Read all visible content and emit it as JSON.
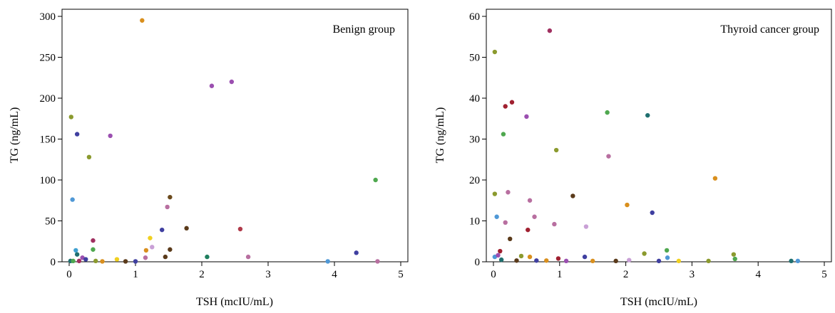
{
  "chart_data": [
    {
      "type": "scatter",
      "title": "Benign group",
      "xlabel": "TSH (mcIU/mL)",
      "ylabel": "TG (ng/mL)",
      "xlim": [
        0,
        5
      ],
      "ylim": [
        0,
        300
      ],
      "xticks": [
        0,
        1,
        2,
        3,
        4,
        5
      ],
      "yticks": [
        0,
        50,
        100,
        150,
        200,
        250,
        300
      ],
      "grid": false,
      "points": [
        {
          "x": 1.1,
          "y": 295,
          "color": "#d98f1d"
        },
        {
          "x": 2.15,
          "y": 215,
          "color": "#9b4fb0"
        },
        {
          "x": 2.45,
          "y": 220,
          "color": "#9b4fb0"
        },
        {
          "x": 0.03,
          "y": 177,
          "color": "#8b9a2e"
        },
        {
          "x": 0.12,
          "y": 156,
          "color": "#3f3fa0"
        },
        {
          "x": 0.62,
          "y": 154,
          "color": "#9b4fb0"
        },
        {
          "x": 0.3,
          "y": 128,
          "color": "#8b9a2e"
        },
        {
          "x": 4.62,
          "y": 100,
          "color": "#4fa84f"
        },
        {
          "x": 1.52,
          "y": 79,
          "color": "#6b4a1c"
        },
        {
          "x": 0.05,
          "y": 76,
          "color": "#4f98d6"
        },
        {
          "x": 1.48,
          "y": 67,
          "color": "#b86fa0"
        },
        {
          "x": 1.77,
          "y": 41,
          "color": "#5a3a1a"
        },
        {
          "x": 1.4,
          "y": 39,
          "color": "#3f3fa0"
        },
        {
          "x": 2.58,
          "y": 40,
          "color": "#b03a4a"
        },
        {
          "x": 1.22,
          "y": 29,
          "color": "#f0d020"
        },
        {
          "x": 0.36,
          "y": 26,
          "color": "#a03060"
        },
        {
          "x": 1.25,
          "y": 18,
          "color": "#c9a0d6"
        },
        {
          "x": 0.36,
          "y": 15,
          "color": "#4fa84f"
        },
        {
          "x": 0.1,
          "y": 14,
          "color": "#3fa0d0"
        },
        {
          "x": 1.16,
          "y": 14,
          "color": "#d98f1d"
        },
        {
          "x": 1.52,
          "y": 15,
          "color": "#5a3a1a"
        },
        {
          "x": 4.33,
          "y": 11,
          "color": "#3f3fa0"
        },
        {
          "x": 0.12,
          "y": 9,
          "color": "#1f6f6f"
        },
        {
          "x": 0.2,
          "y": 5,
          "color": "#9b4fb0"
        },
        {
          "x": 0.25,
          "y": 3,
          "color": "#3f3fa0"
        },
        {
          "x": 1.45,
          "y": 6,
          "color": "#5a3a1a"
        },
        {
          "x": 2.08,
          "y": 6,
          "color": "#1f7f5f"
        },
        {
          "x": 2.7,
          "y": 6,
          "color": "#b86fa0"
        },
        {
          "x": 1.15,
          "y": 5,
          "color": "#b86fa0"
        },
        {
          "x": 0.72,
          "y": 3,
          "color": "#f0d020"
        },
        {
          "x": 0.02,
          "y": 1,
          "color": "#1f6f6f"
        },
        {
          "x": 0.06,
          "y": 1,
          "color": "#4fa84f"
        },
        {
          "x": 0.15,
          "y": 1,
          "color": "#a03060"
        },
        {
          "x": 0.4,
          "y": 1,
          "color": "#8b9a2e"
        },
        {
          "x": 0.5,
          "y": 0.5,
          "color": "#d98f1d"
        },
        {
          "x": 0.85,
          "y": 0.5,
          "color": "#5a3a1a"
        },
        {
          "x": 1.0,
          "y": 0.5,
          "color": "#3f3fa0"
        },
        {
          "x": 3.9,
          "y": 0.5,
          "color": "#4f98d6"
        },
        {
          "x": 4.65,
          "y": 0.5,
          "color": "#b86fa0"
        }
      ]
    },
    {
      "type": "scatter",
      "title": "Thyroid cancer group",
      "xlabel": "TSH (mcIU/mL)",
      "ylabel": "TG (ng/mL)",
      "xlim": [
        0,
        5
      ],
      "ylim": [
        0,
        60
      ],
      "xticks": [
        0,
        1,
        2,
        3,
        4,
        5
      ],
      "yticks": [
        0,
        10,
        20,
        30,
        40,
        50,
        60
      ],
      "grid": false,
      "points": [
        {
          "x": 0.85,
          "y": 56.5,
          "color": "#a03060"
        },
        {
          "x": 0.02,
          "y": 51.3,
          "color": "#8b9a2e"
        },
        {
          "x": 0.28,
          "y": 39,
          "color": "#a02030"
        },
        {
          "x": 0.18,
          "y": 38,
          "color": "#a02030"
        },
        {
          "x": 1.72,
          "y": 36.5,
          "color": "#4fa84f"
        },
        {
          "x": 2.33,
          "y": 35.8,
          "color": "#1f6f6f"
        },
        {
          "x": 0.5,
          "y": 35.5,
          "color": "#9b4fb0"
        },
        {
          "x": 0.15,
          "y": 31.2,
          "color": "#4fa84f"
        },
        {
          "x": 0.95,
          "y": 27.3,
          "color": "#8b9a2e"
        },
        {
          "x": 1.74,
          "y": 25.8,
          "color": "#b86fa0"
        },
        {
          "x": 3.35,
          "y": 20.4,
          "color": "#d98f1d"
        },
        {
          "x": 0.02,
          "y": 16.6,
          "color": "#8b9a2e"
        },
        {
          "x": 0.22,
          "y": 17,
          "color": "#b86fa0"
        },
        {
          "x": 1.2,
          "y": 16.1,
          "color": "#5a3a1a"
        },
        {
          "x": 0.55,
          "y": 15,
          "color": "#b86fa0"
        },
        {
          "x": 2.02,
          "y": 13.9,
          "color": "#d98f1d"
        },
        {
          "x": 2.4,
          "y": 12,
          "color": "#3f3fa0"
        },
        {
          "x": 0.05,
          "y": 11,
          "color": "#4f98d6"
        },
        {
          "x": 0.62,
          "y": 11,
          "color": "#b86fa0"
        },
        {
          "x": 0.18,
          "y": 9.6,
          "color": "#b86fa0"
        },
        {
          "x": 0.92,
          "y": 9.2,
          "color": "#b86fa0"
        },
        {
          "x": 1.4,
          "y": 8.6,
          "color": "#c9a0d6"
        },
        {
          "x": 0.52,
          "y": 7.8,
          "color": "#a02030"
        },
        {
          "x": 0.25,
          "y": 5.6,
          "color": "#5a3a1a"
        },
        {
          "x": 2.62,
          "y": 2.8,
          "color": "#4fa84f"
        },
        {
          "x": 0.1,
          "y": 2.6,
          "color": "#a02030"
        },
        {
          "x": 2.28,
          "y": 2,
          "color": "#8b9a2e"
        },
        {
          "x": 3.63,
          "y": 1.8,
          "color": "#8b9a2e"
        },
        {
          "x": 0.02,
          "y": 1.2,
          "color": "#4f98d6"
        },
        {
          "x": 0.07,
          "y": 1.6,
          "color": "#9b4fb0"
        },
        {
          "x": 0.42,
          "y": 1.4,
          "color": "#8b9a2e"
        },
        {
          "x": 0.55,
          "y": 1.2,
          "color": "#d98f1d"
        },
        {
          "x": 1.38,
          "y": 1.2,
          "color": "#3f3fa0"
        },
        {
          "x": 2.63,
          "y": 1,
          "color": "#4f98d6"
        },
        {
          "x": 0.98,
          "y": 0.8,
          "color": "#a02030"
        },
        {
          "x": 3.65,
          "y": 0.7,
          "color": "#4fa84f"
        },
        {
          "x": 0.12,
          "y": 0.5,
          "color": "#1f6f6f"
        },
        {
          "x": 0.35,
          "y": 0.3,
          "color": "#5a3a1a"
        },
        {
          "x": 0.65,
          "y": 0.3,
          "color": "#3f3fa0"
        },
        {
          "x": 0.8,
          "y": 0.3,
          "color": "#d98f1d"
        },
        {
          "x": 1.1,
          "y": 0.2,
          "color": "#9b4fb0"
        },
        {
          "x": 1.5,
          "y": 0.2,
          "color": "#d98f1d"
        },
        {
          "x": 1.85,
          "y": 0.2,
          "color": "#5a3a1a"
        },
        {
          "x": 2.05,
          "y": 0.4,
          "color": "#c9a0d6"
        },
        {
          "x": 2.5,
          "y": 0.2,
          "color": "#3f3fa0"
        },
        {
          "x": 2.8,
          "y": 0.2,
          "color": "#f0d020"
        },
        {
          "x": 3.25,
          "y": 0.2,
          "color": "#8b9a2e"
        },
        {
          "x": 4.5,
          "y": 0.2,
          "color": "#1f6f6f"
        },
        {
          "x": 4.6,
          "y": 0.2,
          "color": "#4f98d6"
        }
      ]
    }
  ]
}
